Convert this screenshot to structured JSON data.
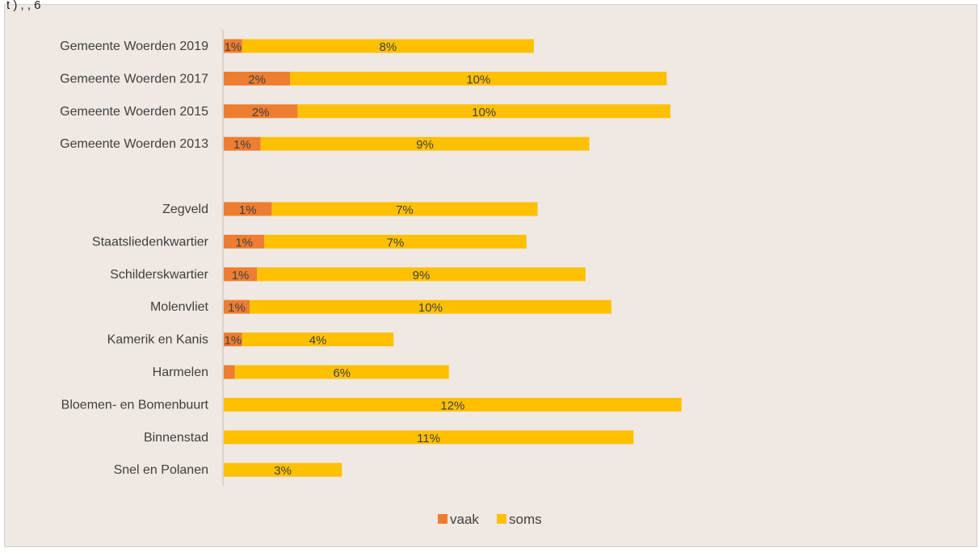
{
  "top_fragment": "t ) , , 6",
  "chart_data": {
    "type": "bar",
    "orientation": "horizontal",
    "stacked": true,
    "categories": [
      "Gemeente Woerden 2019",
      "Gemeente Woerden 2017",
      "Gemeente Woerden 2015",
      "Gemeente Woerden 2013",
      "",
      "Zegveld",
      "Staatsliedenkwartier",
      "Schilderskwartier",
      "Molenvliet",
      "Kamerik en Kanis",
      "Harmelen",
      "Bloemen- en Bomenbuurt",
      "Binnenstad",
      "Snel en Polanen"
    ],
    "series": [
      {
        "name": "vaak",
        "color": "#ed7d31",
        "values": [
          0.5,
          1.8,
          2.0,
          1.0,
          null,
          1.3,
          1.1,
          0.9,
          0.7,
          0.5,
          0.3,
          0,
          0,
          0
        ],
        "labels": [
          "1%",
          "2%",
          "2%",
          "1%",
          "",
          "1%",
          "1%",
          "1%",
          "1%",
          "1%",
          "",
          "",
          "",
          ""
        ]
      },
      {
        "name": "soms",
        "color": "#ffc000",
        "values": [
          7.9,
          10.2,
          10.1,
          8.9,
          null,
          7.2,
          7.1,
          8.9,
          9.8,
          4.1,
          5.8,
          12.4,
          11.1,
          3.2
        ],
        "labels": [
          "8%",
          "10%",
          "10%",
          "9%",
          "",
          "7%",
          "7%",
          "9%",
          "10%",
          "4%",
          "6%",
          "12%",
          "11%",
          "3%"
        ]
      }
    ],
    "xlim": [
      0,
      20
    ],
    "grid": false,
    "legend_position": "bottom"
  },
  "colors": {
    "background": "#f0e8e2",
    "axis": "#bfbfbf",
    "text": "#404040"
  }
}
